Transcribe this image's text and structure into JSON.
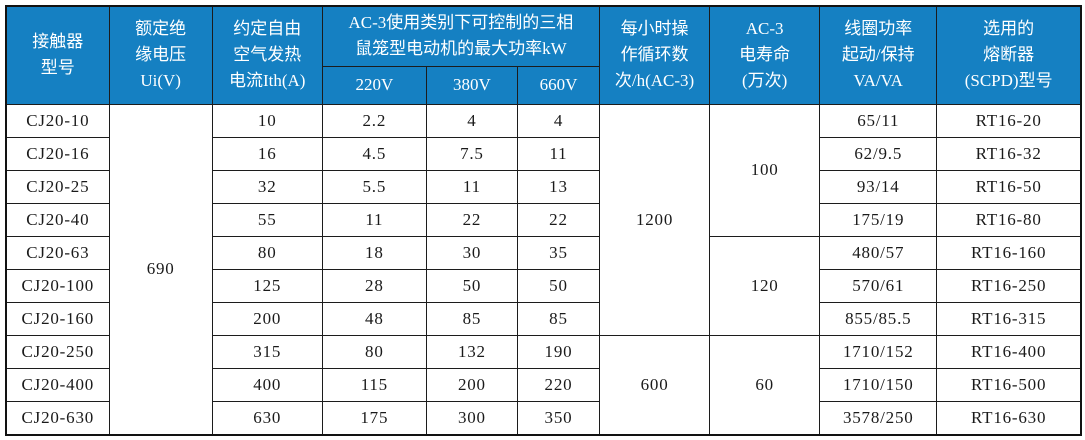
{
  "theme": {
    "header_bg": "#1580c2",
    "header_text": "#ffffff",
    "body_text": "#1a1a1a",
    "grid_line": "#1c1c1c"
  },
  "table": {
    "header": {
      "model": "接触器\n型号",
      "ui": "额定绝\n缘电压\nUi(V)",
      "ith": "约定自由\n空气发热\n电流Ith(A)",
      "kw_group": "AC-3使用类别下可控制的三相\n鼠笼型电动机的最大功率kW",
      "kw_subs": [
        "220V",
        "380V",
        "660V"
      ],
      "cycles": "每小时操\n作循环数\n次/h(AC-3)",
      "life": "AC-3\n电寿命\n(万次)",
      "coil": "线圈功率\n起动/保持\nVA/VA",
      "fuse": "选用的\n熔断器\n(SCPD)型号"
    },
    "body": [
      [
        {
          "t": "CJ20-10"
        },
        {
          "t": "690",
          "rs": 10
        },
        {
          "t": "10"
        },
        {
          "t": "2.2"
        },
        {
          "t": "4"
        },
        {
          "t": "4"
        },
        {
          "t": "1200",
          "rs": 7
        },
        {
          "t": "100",
          "rs": 4
        },
        {
          "t": "65/11"
        },
        {
          "t": "RT16-20"
        }
      ],
      [
        {
          "t": "CJ20-16"
        },
        {
          "t": "16"
        },
        {
          "t": "4.5"
        },
        {
          "t": "7.5"
        },
        {
          "t": "11"
        },
        {
          "t": "62/9.5"
        },
        {
          "t": "RT16-32"
        }
      ],
      [
        {
          "t": "CJ20-25"
        },
        {
          "t": "32"
        },
        {
          "t": "5.5"
        },
        {
          "t": "11"
        },
        {
          "t": "13"
        },
        {
          "t": "93/14"
        },
        {
          "t": "RT16-50"
        }
      ],
      [
        {
          "t": "CJ20-40"
        },
        {
          "t": "55"
        },
        {
          "t": "11"
        },
        {
          "t": "22"
        },
        {
          "t": "22"
        },
        {
          "t": "175/19"
        },
        {
          "t": "RT16-80"
        }
      ],
      [
        {
          "t": "CJ20-63"
        },
        {
          "t": "80"
        },
        {
          "t": "18"
        },
        {
          "t": "30"
        },
        {
          "t": "35"
        },
        {
          "t": "120",
          "rs": 3
        },
        {
          "t": "480/57"
        },
        {
          "t": "RT16-160"
        }
      ],
      [
        {
          "t": "CJ20-100"
        },
        {
          "t": "125"
        },
        {
          "t": "28"
        },
        {
          "t": "50"
        },
        {
          "t": "50"
        },
        {
          "t": "570/61"
        },
        {
          "t": "RT16-250"
        }
      ],
      [
        {
          "t": "CJ20-160"
        },
        {
          "t": "200"
        },
        {
          "t": "48"
        },
        {
          "t": "85"
        },
        {
          "t": "85"
        },
        {
          "t": "855/85.5"
        },
        {
          "t": "RT16-315"
        }
      ],
      [
        {
          "t": "CJ20-250"
        },
        {
          "t": "315"
        },
        {
          "t": "80"
        },
        {
          "t": "132"
        },
        {
          "t": "190"
        },
        {
          "t": "600",
          "rs": 3
        },
        {
          "t": "60",
          "rs": 3
        },
        {
          "t": "1710/152"
        },
        {
          "t": "RT16-400"
        }
      ],
      [
        {
          "t": "CJ20-400"
        },
        {
          "t": "400"
        },
        {
          "t": "115"
        },
        {
          "t": "200"
        },
        {
          "t": "220"
        },
        {
          "t": "1710/150"
        },
        {
          "t": "RT16-500"
        }
      ],
      [
        {
          "t": "CJ20-630"
        },
        {
          "t": "630"
        },
        {
          "t": "175"
        },
        {
          "t": "300"
        },
        {
          "t": "350"
        },
        {
          "t": "3578/250"
        },
        {
          "t": "RT16-630"
        }
      ]
    ]
  }
}
